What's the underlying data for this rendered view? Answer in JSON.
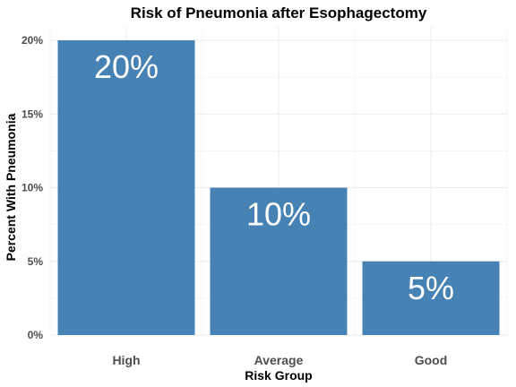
{
  "chart_data": {
    "type": "bar",
    "title": "Risk of Pneumonia after Esophagectomy",
    "xlabel": "Risk Group",
    "ylabel": "Percent With Pneumonia",
    "categories": [
      "High",
      "Average",
      "Good"
    ],
    "values": [
      20,
      10,
      5
    ],
    "data_labels": [
      "20%",
      "10%",
      "5%"
    ],
    "ylim": [
      0,
      20
    ],
    "y_ticks": [
      0,
      5,
      10,
      15,
      20
    ],
    "y_tick_labels": [
      "0%",
      "5%",
      "10%",
      "15%",
      "20%"
    ],
    "bar_color": "#4682B4",
    "grid": true,
    "legend": "none"
  }
}
